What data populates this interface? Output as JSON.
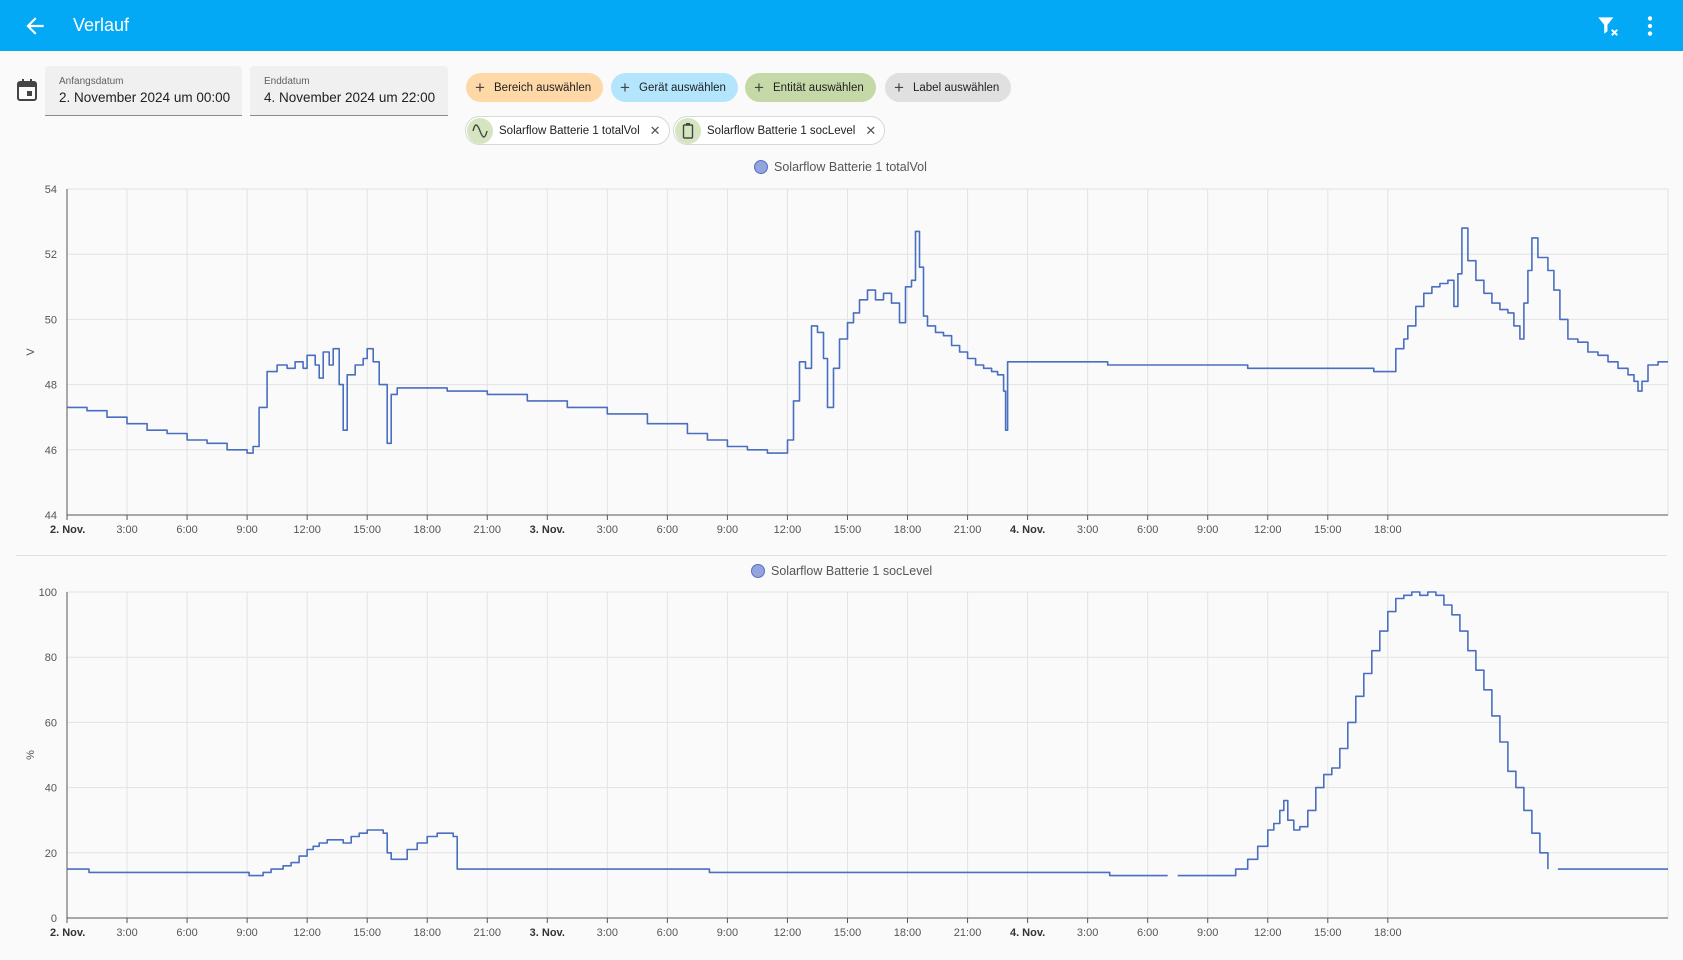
{
  "header": {
    "title": "Verlauf",
    "back_icon": "arrow-left-icon",
    "filter_icon": "filter-remove-icon",
    "menu_icon": "dots-vertical-icon"
  },
  "date_picker": {
    "start": {
      "label": "Anfangsdatum",
      "value": "2. November 2024 um 00:00"
    },
    "end": {
      "label": "Enddatum",
      "value": "4. November 2024 um 22:00"
    }
  },
  "target_picker": {
    "add_chips": [
      {
        "label": "Bereich auswählen",
        "color": "#ffd8a8"
      },
      {
        "label": "Gerät auswählen",
        "color": "#b3e5fc"
      },
      {
        "label": "Entität auswählen",
        "color": "#c5d9a8"
      },
      {
        "label": "Label auswählen",
        "color": "#e0e0e0"
      }
    ],
    "selected": [
      {
        "label": "Solarflow Batterie 1 totalVol",
        "icon": "sine-wave-icon"
      },
      {
        "label": "Solarflow Batterie 1 socLevel",
        "icon": "battery-icon"
      }
    ]
  },
  "colors": {
    "primary": "#03a9f4",
    "series": "#4a6ec0"
  },
  "chart_data": [
    {
      "type": "line",
      "series": [
        {
          "name": "Solarflow Batterie 1 totalVol",
          "points": [
            [
              0,
              47.3
            ],
            [
              1,
              47.2
            ],
            [
              2,
              47.0
            ],
            [
              3,
              46.8
            ],
            [
              4,
              46.6
            ],
            [
              5,
              46.5
            ],
            [
              6,
              46.3
            ],
            [
              7,
              46.2
            ],
            [
              8,
              46.0
            ],
            [
              9,
              45.9
            ],
            [
              9.3,
              46.1
            ],
            [
              9.6,
              47.3
            ],
            [
              10.0,
              48.4
            ],
            [
              10.5,
              48.6
            ],
            [
              11.0,
              48.5
            ],
            [
              11.4,
              48.7
            ],
            [
              11.8,
              48.5
            ],
            [
              12.0,
              48.9
            ],
            [
              12.4,
              48.6
            ],
            [
              12.6,
              48.2
            ],
            [
              12.8,
              49.0
            ],
            [
              13.1,
              48.6
            ],
            [
              13.3,
              49.1
            ],
            [
              13.6,
              48.0
            ],
            [
              13.8,
              46.6
            ],
            [
              14.0,
              48.3
            ],
            [
              14.4,
              48.6
            ],
            [
              14.8,
              48.8
            ],
            [
              15.0,
              49.1
            ],
            [
              15.3,
              48.7
            ],
            [
              15.6,
              48.0
            ],
            [
              16.0,
              46.2
            ],
            [
              16.2,
              47.7
            ],
            [
              16.5,
              47.9
            ],
            [
              17.0,
              47.9
            ],
            [
              18.0,
              47.9
            ],
            [
              19.0,
              47.8
            ],
            [
              21.0,
              47.7
            ],
            [
              23.0,
              47.5
            ],
            [
              25.0,
              47.3
            ],
            [
              27.0,
              47.1
            ],
            [
              29.0,
              46.8
            ],
            [
              31.0,
              46.5
            ],
            [
              32.0,
              46.3
            ],
            [
              33.0,
              46.1
            ],
            [
              34.0,
              46.0
            ],
            [
              35.0,
              45.9
            ],
            [
              35.8,
              45.9
            ],
            [
              36.0,
              46.3
            ],
            [
              36.3,
              47.5
            ],
            [
              36.6,
              48.7
            ],
            [
              36.9,
              48.5
            ],
            [
              37.2,
              49.8
            ],
            [
              37.5,
              49.6
            ],
            [
              37.8,
              48.8
            ],
            [
              38.0,
              47.3
            ],
            [
              38.3,
              48.5
            ],
            [
              38.6,
              49.4
            ],
            [
              39.0,
              49.9
            ],
            [
              39.3,
              50.2
            ],
            [
              39.6,
              50.6
            ],
            [
              40.0,
              50.9
            ],
            [
              40.4,
              50.6
            ],
            [
              40.8,
              50.8
            ],
            [
              41.2,
              50.5
            ],
            [
              41.6,
              49.9
            ],
            [
              41.9,
              51.0
            ],
            [
              42.2,
              51.2
            ],
            [
              42.4,
              52.7
            ],
            [
              42.6,
              51.6
            ],
            [
              42.8,
              50.1
            ],
            [
              43.0,
              49.8
            ],
            [
              43.4,
              49.6
            ],
            [
              43.8,
              49.5
            ],
            [
              44.2,
              49.2
            ],
            [
              44.6,
              49.0
            ],
            [
              45.0,
              48.8
            ],
            [
              45.4,
              48.6
            ],
            [
              45.8,
              48.5
            ],
            [
              46.2,
              48.4
            ],
            [
              46.5,
              48.3
            ],
            [
              46.8,
              47.8
            ],
            [
              46.9,
              46.6
            ],
            [
              47.0,
              48.7
            ],
            [
              48.0,
              48.7
            ],
            [
              50.0,
              48.7
            ],
            [
              51.0,
              48.7
            ],
            [
              52.0,
              48.6
            ],
            [
              55.0,
              48.6
            ],
            [
              58.0,
              48.6
            ],
            [
              59.0,
              48.5
            ],
            [
              63.0,
              48.5
            ],
            [
              65.0,
              48.5
            ],
            [
              65.3,
              48.4
            ],
            [
              66.2,
              48.4
            ],
            [
              66.4,
              49.1
            ],
            [
              66.8,
              49.4
            ],
            [
              67.0,
              49.8
            ],
            [
              67.4,
              50.4
            ],
            [
              67.8,
              50.8
            ],
            [
              68.2,
              51.0
            ],
            [
              68.6,
              51.1
            ],
            [
              69.0,
              51.2
            ],
            [
              69.3,
              50.4
            ],
            [
              69.5,
              51.4
            ],
            [
              69.7,
              52.8
            ],
            [
              70.0,
              51.8
            ],
            [
              70.4,
              51.2
            ],
            [
              70.8,
              50.8
            ],
            [
              71.2,
              50.5
            ],
            [
              71.6,
              50.3
            ],
            [
              72.0,
              50.2
            ],
            [
              72.3,
              49.8
            ],
            [
              72.6,
              49.4
            ],
            [
              72.8,
              50.5
            ],
            [
              73.0,
              51.5
            ],
            [
              73.2,
              52.5
            ],
            [
              73.5,
              51.9
            ],
            [
              74.0,
              51.5
            ],
            [
              74.3,
              50.9
            ],
            [
              74.6,
              50.0
            ],
            [
              75.0,
              49.4
            ],
            [
              75.5,
              49.3
            ],
            [
              76.0,
              49.0
            ],
            [
              76.5,
              48.9
            ],
            [
              77.0,
              48.7
            ],
            [
              77.5,
              48.5
            ],
            [
              78.0,
              48.3
            ],
            [
              78.3,
              48.1
            ],
            [
              78.5,
              47.8
            ],
            [
              78.7,
              48.1
            ],
            [
              79.0,
              48.6
            ],
            [
              79.5,
              48.7
            ],
            [
              80.0,
              48.7
            ]
          ]
        }
      ],
      "xlim": [
        0,
        80
      ],
      "ylim": [
        44,
        54
      ],
      "y_ticks": [
        44,
        46,
        48,
        50,
        52,
        54
      ],
      "ylabel": "V",
      "x_ticks": [
        {
          "h": 0,
          "label": "2. Nov.",
          "bold": true
        },
        {
          "h": 3,
          "label": "3:00"
        },
        {
          "h": 6,
          "label": "6:00"
        },
        {
          "h": 9,
          "label": "9:00"
        },
        {
          "h": 12,
          "label": "12:00"
        },
        {
          "h": 15,
          "label": "15:00"
        },
        {
          "h": 18,
          "label": "18:00"
        },
        {
          "h": 21,
          "label": "21:00"
        },
        {
          "h": 24,
          "label": "3. Nov.",
          "bold": true
        },
        {
          "h": 27,
          "label": "3:00"
        },
        {
          "h": 30,
          "label": "6:00"
        },
        {
          "h": 33,
          "label": "9:00"
        },
        {
          "h": 36,
          "label": "12:00"
        },
        {
          "h": 39,
          "label": "15:00"
        },
        {
          "h": 42,
          "label": "18:00"
        },
        {
          "h": 45,
          "label": "21:00"
        },
        {
          "h": 48,
          "label": "4. Nov.",
          "bold": true
        },
        {
          "h": 51,
          "label": "3:00"
        },
        {
          "h": 54,
          "label": "6:00"
        },
        {
          "h": 57,
          "label": "9:00"
        },
        {
          "h": 60,
          "label": "12:00"
        },
        {
          "h": 63,
          "label": "15:00"
        },
        {
          "h": 66,
          "label": "18:00"
        }
      ],
      "grid": true,
      "legend": "top-center"
    },
    {
      "type": "line",
      "series": [
        {
          "name": "Solarflow Batterie 1 socLevel",
          "segments": [
            [
              [
                0,
                15
              ],
              [
                1,
                15
              ],
              [
                1.1,
                14
              ],
              [
                9.0,
                14
              ],
              [
                9.1,
                13
              ],
              [
                9.6,
                13
              ],
              [
                9.8,
                14
              ],
              [
                10.2,
                15
              ],
              [
                10.8,
                16
              ],
              [
                11.2,
                17
              ],
              [
                11.6,
                19
              ],
              [
                12.0,
                21
              ],
              [
                12.3,
                22
              ],
              [
                12.6,
                23
              ],
              [
                13.0,
                24
              ],
              [
                13.4,
                24
              ],
              [
                13.8,
                23
              ],
              [
                14.2,
                25
              ],
              [
                14.6,
                26
              ],
              [
                15.0,
                27
              ],
              [
                15.5,
                27
              ],
              [
                15.8,
                26
              ],
              [
                16.0,
                20
              ],
              [
                16.2,
                18
              ],
              [
                16.5,
                18
              ],
              [
                17.0,
                21
              ],
              [
                17.5,
                23
              ],
              [
                18.0,
                25
              ],
              [
                18.5,
                26
              ],
              [
                19.0,
                26
              ],
              [
                19.3,
                25
              ],
              [
                19.5,
                15
              ],
              [
                20.0,
                15
              ],
              [
                22.0,
                15
              ],
              [
                26.0,
                15
              ],
              [
                30.0,
                15
              ],
              [
                32.0,
                15
              ],
              [
                32.1,
                14
              ],
              [
                40.0,
                14
              ],
              [
                44.0,
                14
              ],
              [
                47.0,
                14
              ],
              [
                51.0,
                14
              ],
              [
                52.0,
                14
              ],
              [
                52.1,
                13
              ],
              [
                55.0,
                13
              ]
            ],
            [
              [
                55.5,
                13
              ],
              [
                57.5,
                13
              ],
              [
                58.0,
                13
              ],
              [
                58.4,
                15
              ],
              [
                59.0,
                18
              ],
              [
                59.5,
                22
              ],
              [
                60.0,
                27
              ],
              [
                60.3,
                29
              ],
              [
                60.6,
                33
              ],
              [
                60.8,
                36
              ],
              [
                61.0,
                30
              ],
              [
                61.3,
                27
              ],
              [
                61.6,
                28
              ],
              [
                62.0,
                33
              ],
              [
                62.4,
                40
              ],
              [
                62.8,
                44
              ],
              [
                63.2,
                46
              ],
              [
                63.6,
                52
              ],
              [
                64.0,
                60
              ],
              [
                64.4,
                68
              ],
              [
                64.8,
                75
              ],
              [
                65.2,
                82
              ],
              [
                65.6,
                88
              ],
              [
                66.0,
                94
              ],
              [
                66.4,
                98
              ],
              [
                66.8,
                99
              ],
              [
                67.2,
                100
              ],
              [
                67.6,
                99
              ],
              [
                68.0,
                100
              ],
              [
                68.4,
                99
              ],
              [
                68.8,
                96
              ],
              [
                69.2,
                93
              ],
              [
                69.6,
                88
              ],
              [
                70.0,
                82
              ],
              [
                70.4,
                76
              ],
              [
                70.8,
                70
              ],
              [
                71.2,
                62
              ],
              [
                71.6,
                54
              ],
              [
                72.0,
                45
              ],
              [
                72.4,
                40
              ],
              [
                72.8,
                33
              ],
              [
                73.2,
                26
              ],
              [
                73.6,
                20
              ],
              [
                74.0,
                15
              ]
            ],
            [
              [
                74.5,
                15
              ],
              [
                76.0,
                15
              ],
              [
                78.0,
                15
              ],
              [
                80.0,
                15
              ]
            ]
          ]
        }
      ],
      "xlim": [
        0,
        80
      ],
      "ylim": [
        0,
        100
      ],
      "y_ticks": [
        0,
        20,
        40,
        60,
        80,
        100
      ],
      "ylabel": "%",
      "grid": true,
      "legend": "top-center"
    }
  ]
}
